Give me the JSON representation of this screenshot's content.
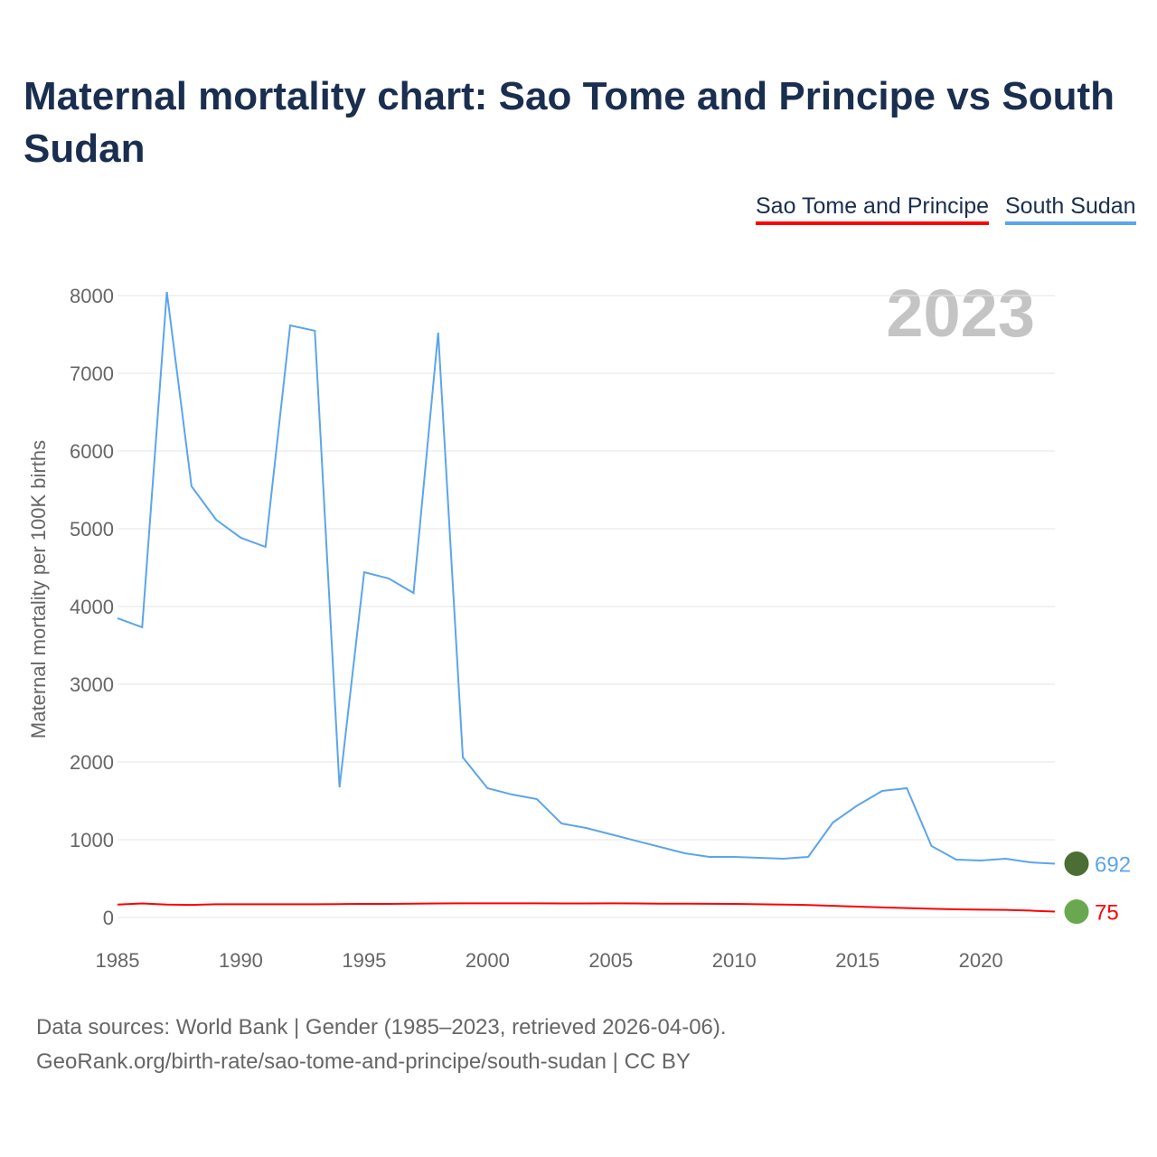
{
  "title": "Maternal mortality chart: Sao Tome and Principe vs South Sudan",
  "footer": {
    "line1": "Data sources: World Bank | Gender (1985–2023, retrieved 2026-04-06).",
    "line2": "GeoRank.org/birth-rate/sao-tome-and-principe/south-sudan | CC BY"
  },
  "chart_data": {
    "type": "line",
    "title": "Maternal mortality chart: Sao Tome and Principe vs South Sudan",
    "ylabel": "Maternal mortality per 100K births",
    "xlabel": "",
    "year_label": "2023",
    "xlim": [
      1985,
      2023
    ],
    "ylim": [
      0,
      8000
    ],
    "xticks": [
      "1985",
      "1990",
      "1995",
      "2000",
      "2005",
      "2010",
      "2015",
      "2020"
    ],
    "yticks": [
      "0",
      "1000",
      "2000",
      "3000",
      "4000",
      "5000",
      "6000",
      "7000",
      "8000"
    ],
    "legend_position": "top-right",
    "x": [
      1985,
      1986,
      1987,
      1988,
      1989,
      1990,
      1991,
      1992,
      1993,
      1994,
      1995,
      1996,
      1997,
      1998,
      1999,
      2000,
      2001,
      2002,
      2003,
      2004,
      2005,
      2006,
      2007,
      2008,
      2009,
      2010,
      2011,
      2012,
      2013,
      2014,
      2015,
      2016,
      2017,
      2018,
      2019,
      2020,
      2021,
      2022,
      2023
    ],
    "series": [
      {
        "name": "Sao Tome and Principe",
        "color": "#ff0000",
        "end_label": "75",
        "values": [
          165,
          180,
          165,
          162,
          170,
          170,
          170,
          170,
          170,
          172,
          175,
          175,
          178,
          180,
          182,
          182,
          182,
          182,
          180,
          180,
          182,
          180,
          178,
          178,
          176,
          174,
          170,
          165,
          160,
          150,
          140,
          130,
          120,
          112,
          105,
          100,
          98,
          88,
          75
        ]
      },
      {
        "name": "South Sudan",
        "color": "#5ba5ec",
        "end_label": "692",
        "values": [
          3849,
          3733,
          8047,
          5547,
          5116,
          4884,
          4767,
          7616,
          7547,
          1674,
          4442,
          4360,
          4174,
          7523,
          2058,
          1663,
          1581,
          1523,
          1209,
          1151,
          1070,
          988,
          907,
          826,
          779,
          779,
          767,
          756,
          779,
          1221,
          1442,
          1628,
          1663,
          919,
          744,
          733,
          756,
          709,
          692
        ]
      }
    ]
  }
}
